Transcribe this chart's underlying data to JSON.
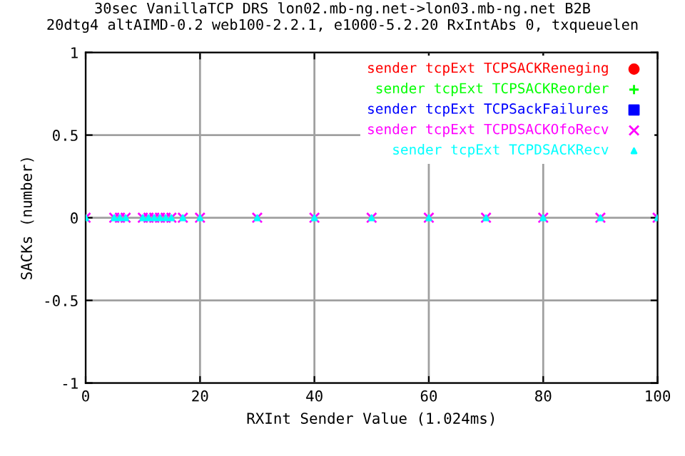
{
  "chart_data": {
    "type": "scatter",
    "title": "30sec VanillaTCP DRS lon02.mb-ng.net->lon03.mb-ng.net B2B\n20dtg4 altAIMD-0.2 web100-2.2.1, e1000-5.2.20 RxIntAbs 0, txqueuelen",
    "xlabel": "RXInt Sender Value (1.024ms)",
    "ylabel": "SACKs (number)",
    "x": [
      0,
      5,
      6,
      7,
      10,
      11,
      12,
      13,
      14,
      15,
      17,
      20,
      30,
      40,
      50,
      60,
      70,
      80,
      90,
      100
    ],
    "series": [
      {
        "name": "sender tcpExt TCPSACKReneging",
        "color": "#ff0000",
        "marker": "circle",
        "values": [
          null,
          null,
          null,
          null,
          null,
          null,
          null,
          null,
          null,
          null,
          null,
          null,
          null,
          null,
          null,
          null,
          null,
          null,
          null,
          null
        ]
      },
      {
        "name": "sender tcpExt TCPSACKReorder",
        "color": "#00ff00",
        "marker": "cross",
        "values": [
          null,
          null,
          null,
          null,
          null,
          null,
          null,
          null,
          null,
          null,
          null,
          null,
          null,
          null,
          null,
          null,
          null,
          null,
          null,
          null
        ]
      },
      {
        "name": "sender tcpExt TCPSackFailures",
        "color": "#0000ff",
        "marker": "square",
        "values": [
          null,
          null,
          null,
          null,
          null,
          null,
          null,
          null,
          null,
          null,
          null,
          null,
          null,
          null,
          null,
          null,
          null,
          null,
          null,
          null
        ]
      },
      {
        "name": "sender tcpExt TCPDSACKOfoRecv",
        "color": "#ff00ff",
        "marker": "cross",
        "values": [
          0,
          0,
          0,
          0,
          0,
          0,
          0,
          0,
          0,
          0,
          0,
          0,
          0,
          0,
          0,
          0,
          0,
          0,
          0,
          0
        ]
      },
      {
        "name": "sender tcpExt TCPDSACKRecv",
        "color": "#00ffff",
        "marker": "triangle",
        "values": [
          0,
          0,
          0,
          0,
          0,
          0,
          0,
          0,
          0,
          0,
          0,
          0,
          0,
          0,
          0,
          0,
          0,
          0,
          0,
          0
        ]
      }
    ],
    "xlim": [
      0,
      100
    ],
    "xticks": [
      0,
      20,
      40,
      60,
      80,
      100
    ],
    "ylim": [
      -1,
      1
    ],
    "yticks": [
      -1,
      -0.5,
      0,
      0.5,
      1
    ],
    "grid": true,
    "legend": "top right"
  }
}
